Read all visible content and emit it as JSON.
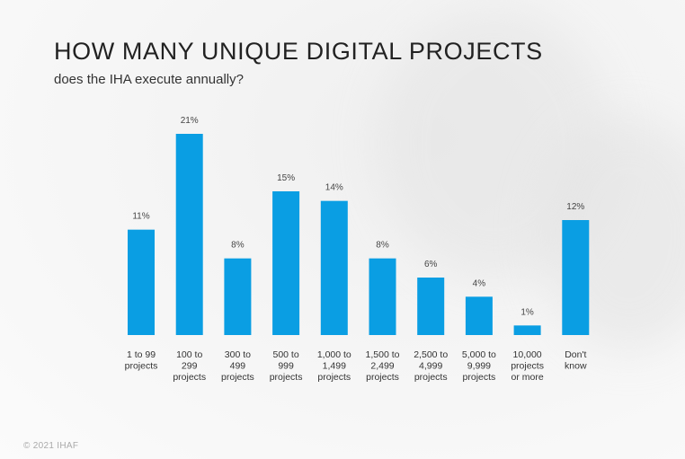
{
  "header": {
    "title": "HOW MANY UNIQUE DIGITAL PROJECTS",
    "subtitle": "does the IHA execute annually?"
  },
  "footer": {
    "copyright": "© 2021 IHAF"
  },
  "colors": {
    "bar": "#0a9ee3",
    "label": "#333333",
    "value_label": "#444444"
  },
  "chart_data": {
    "type": "bar",
    "title": "HOW MANY UNIQUE DIGITAL PROJECTS",
    "subtitle": "does the IHA execute annually?",
    "xlabel": "",
    "ylabel": "",
    "categories": [
      [
        "1 to 99",
        "projects"
      ],
      [
        "100 to",
        "299",
        "projects"
      ],
      [
        "300 to",
        "499",
        "projects"
      ],
      [
        "500 to",
        "999",
        "projects"
      ],
      [
        "1,000 to",
        "1,499",
        "projects"
      ],
      [
        "1,500 to",
        "2,499",
        "projects"
      ],
      [
        "2,500 to",
        "4,999",
        "projects"
      ],
      [
        "5,000 to",
        "9,999",
        "projects"
      ],
      [
        "10,000",
        "projects",
        "or more"
      ],
      [
        "Don't",
        "know"
      ]
    ],
    "values": [
      11,
      21,
      8,
      15,
      14,
      8,
      6,
      4,
      1,
      12
    ],
    "value_labels": [
      "11%",
      "21%",
      "8%",
      "15%",
      "14%",
      "8%",
      "6%",
      "4%",
      "1%",
      "12%"
    ],
    "ylim": [
      0,
      21
    ],
    "grid": false,
    "legend": "none"
  }
}
